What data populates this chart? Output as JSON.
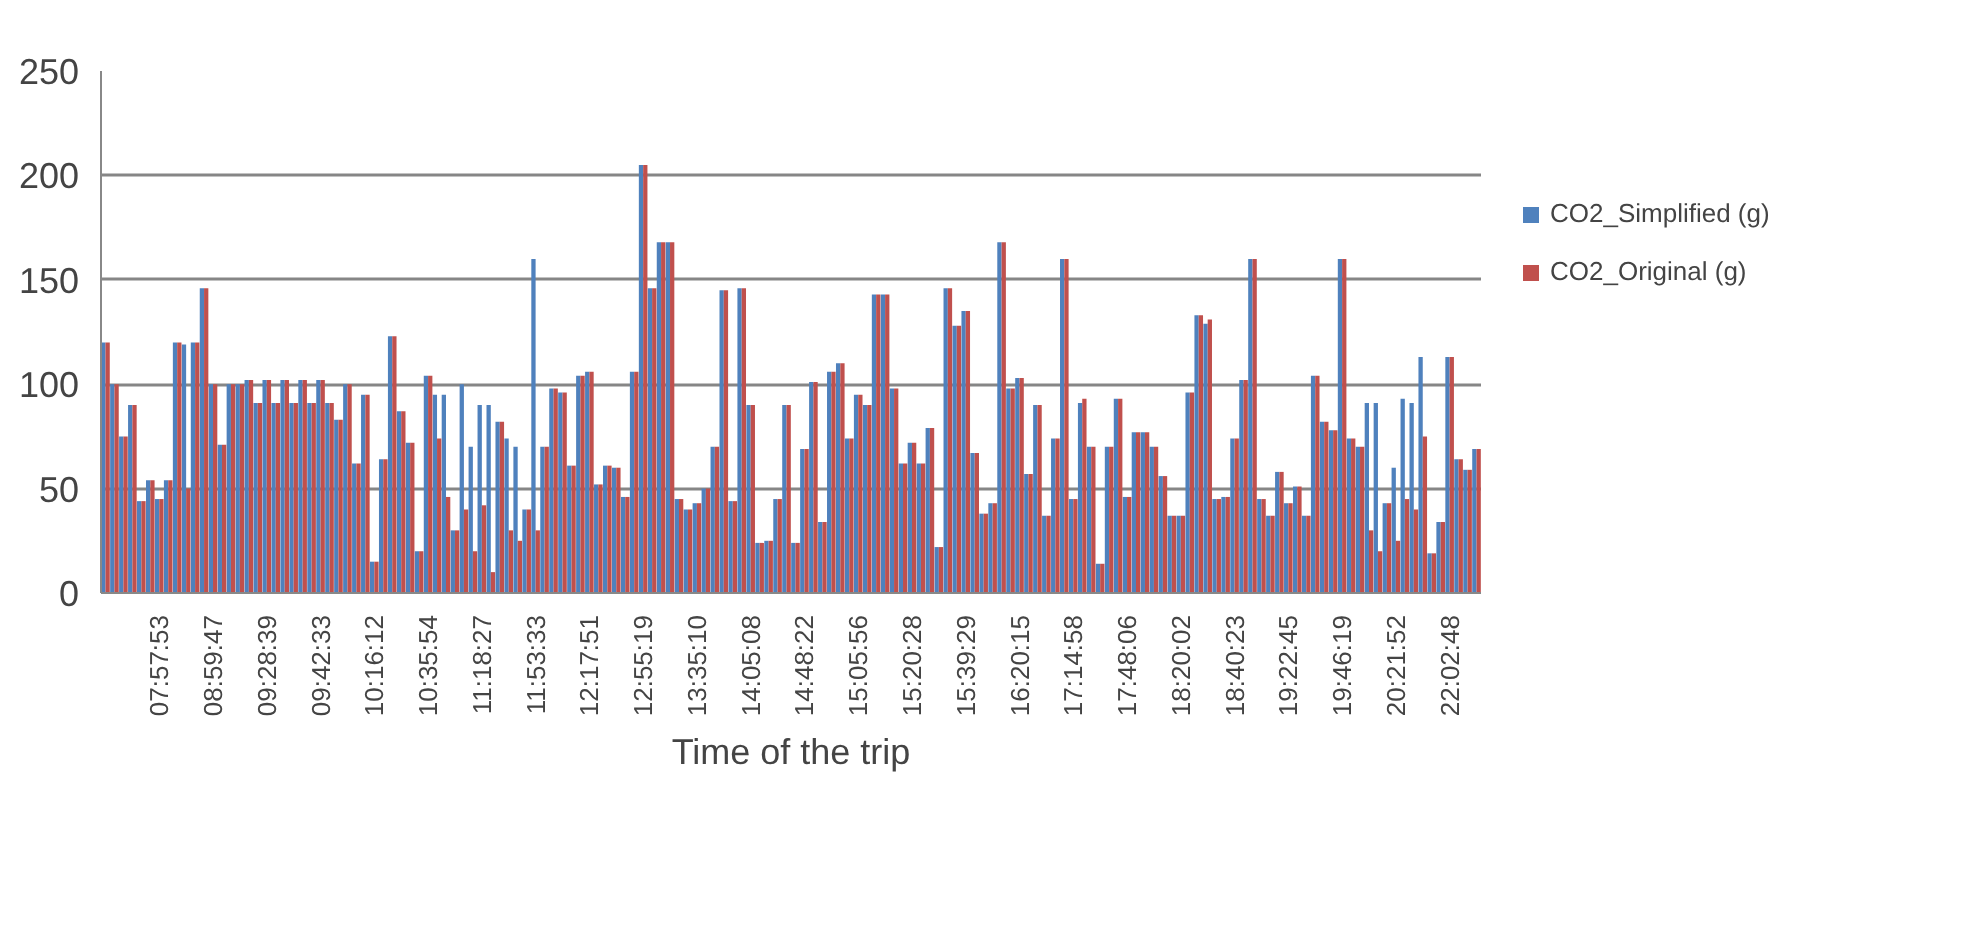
{
  "chart_data": {
    "type": "bar",
    "xlabel": "Time of the trip",
    "categories": [
      null,
      null,
      null,
      null,
      null,
      null,
      "07:57:53",
      null,
      null,
      null,
      null,
      null,
      "08:59:47",
      null,
      null,
      null,
      null,
      null,
      "09:28:39",
      null,
      null,
      null,
      null,
      null,
      "09:42:33",
      null,
      null,
      null,
      null,
      null,
      "10:16:12",
      null,
      null,
      null,
      null,
      null,
      "10:35:54",
      null,
      null,
      null,
      null,
      null,
      "11:18:27",
      null,
      null,
      null,
      null,
      null,
      "11:53:33",
      null,
      null,
      null,
      null,
      null,
      "12:17:51",
      null,
      null,
      null,
      null,
      null,
      "12:55:19",
      null,
      null,
      null,
      null,
      null,
      "13:35:10",
      null,
      null,
      null,
      null,
      null,
      "14:05:08",
      null,
      null,
      null,
      null,
      null,
      "14:48:22",
      null,
      null,
      null,
      null,
      null,
      "15:05:56",
      null,
      null,
      null,
      null,
      null,
      "15:20:28",
      null,
      null,
      null,
      null,
      null,
      "15:39:29",
      null,
      null,
      null,
      null,
      null,
      "16:20:15",
      null,
      null,
      null,
      null,
      null,
      "17:14:58",
      null,
      null,
      null,
      null,
      null,
      "17:48:06",
      null,
      null,
      null,
      null,
      null,
      "18:20:02",
      null,
      null,
      null,
      null,
      null,
      "18:40:23",
      null,
      null,
      null,
      null,
      null,
      "19:22:45",
      null,
      null,
      null,
      null,
      null,
      "19:46:19",
      null,
      null,
      null,
      null,
      null,
      "20:21:52",
      null,
      null,
      null,
      null,
      null,
      "22:02:48",
      null,
      null,
      null
    ],
    "series": [
      {
        "name": "CO2_Simplified (g)",
        "color": "#4f81bd",
        "values": [
          120,
          100,
          75,
          90,
          44,
          54,
          45,
          54,
          120,
          119,
          120,
          146,
          100,
          71,
          100,
          100,
          102,
          91,
          102,
          91,
          102,
          91,
          102,
          91,
          102,
          91,
          83,
          100,
          62,
          95,
          15,
          64,
          123,
          87,
          72,
          20,
          104,
          95,
          95,
          30,
          100,
          70,
          90,
          90,
          82,
          74,
          70,
          40,
          160,
          70,
          98,
          96,
          61,
          104,
          106,
          52,
          61,
          60,
          46,
          106,
          205,
          146,
          168,
          168,
          45,
          40,
          43,
          50,
          70,
          145,
          44,
          146,
          90,
          24,
          25,
          45,
          90,
          24,
          69,
          101,
          34,
          106,
          110,
          74,
          95,
          90,
          143,
          143,
          98,
          62,
          72,
          62,
          79,
          22,
          146,
          128,
          135,
          67,
          38,
          43,
          168,
          98,
          103,
          57,
          90,
          37,
          74,
          160,
          45,
          91,
          70,
          14,
          70,
          93,
          46,
          77,
          77,
          70,
          56,
          37,
          37,
          96,
          133,
          129,
          45,
          46,
          74,
          102,
          160,
          45,
          37,
          58,
          43,
          51,
          37,
          104,
          82,
          78,
          160,
          74,
          70,
          91,
          91,
          43,
          60,
          93,
          91,
          113,
          19,
          34,
          113,
          64,
          59,
          69
        ]
      },
      {
        "name": "CO2_Original (g)",
        "color": "#c0504d",
        "values": [
          120,
          100,
          75,
          90,
          44,
          54,
          45,
          54,
          120,
          50,
          120,
          146,
          100,
          71,
          100,
          100,
          102,
          91,
          102,
          91,
          102,
          91,
          102,
          91,
          102,
          91,
          83,
          100,
          62,
          95,
          15,
          64,
          123,
          87,
          72,
          20,
          104,
          74,
          46,
          30,
          40,
          20,
          42,
          10,
          82,
          30,
          25,
          40,
          30,
          70,
          98,
          96,
          61,
          104,
          106,
          52,
          61,
          60,
          46,
          106,
          205,
          146,
          168,
          168,
          45,
          40,
          43,
          50,
          70,
          145,
          44,
          146,
          90,
          24,
          25,
          45,
          90,
          24,
          69,
          101,
          34,
          106,
          110,
          74,
          95,
          90,
          143,
          143,
          98,
          62,
          72,
          62,
          79,
          22,
          146,
          128,
          135,
          67,
          38,
          43,
          168,
          98,
          103,
          57,
          90,
          37,
          74,
          160,
          45,
          93,
          70,
          14,
          70,
          93,
          46,
          77,
          77,
          70,
          56,
          37,
          37,
          96,
          133,
          131,
          45,
          46,
          74,
          102,
          160,
          45,
          37,
          58,
          43,
          51,
          37,
          104,
          82,
          78,
          160,
          74,
          70,
          30,
          20,
          43,
          25,
          45,
          40,
          75,
          19,
          34,
          113,
          64,
          59,
          69
        ]
      }
    ],
    "ylim": [
      0,
      250
    ],
    "yticks": [
      0,
      50,
      100,
      150,
      200,
      250
    ],
    "grid": "y",
    "legend": "right"
  }
}
